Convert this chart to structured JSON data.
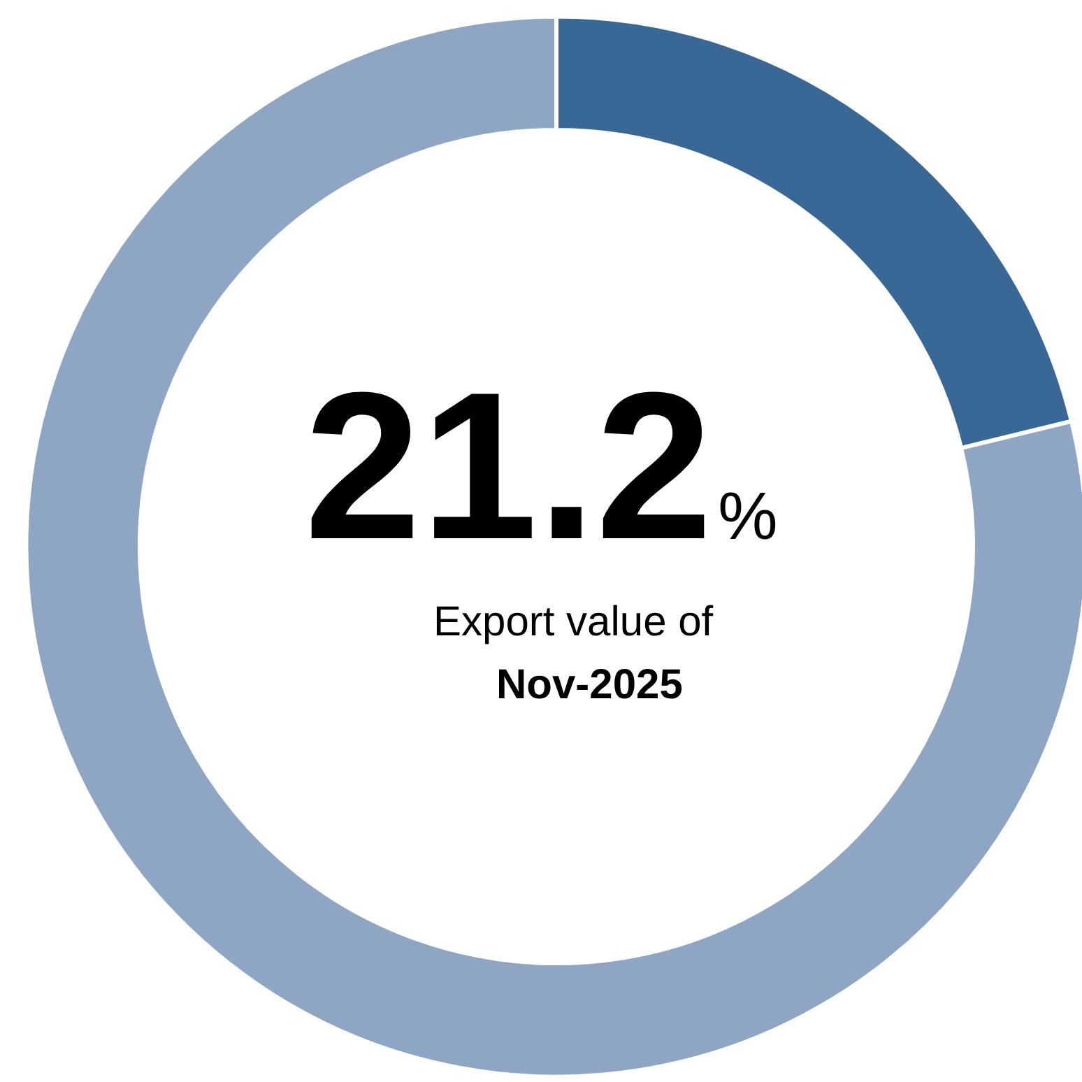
{
  "chart_data": {
    "type": "donut",
    "categories": [
      null,
      null
    ],
    "values": [
      21.2,
      78.8
    ],
    "colors": [
      "#3a6896",
      "#8fa5c4"
    ],
    "annotations": [
      "21.2%",
      "Export value of",
      "Nov-2025"
    ]
  }
}
